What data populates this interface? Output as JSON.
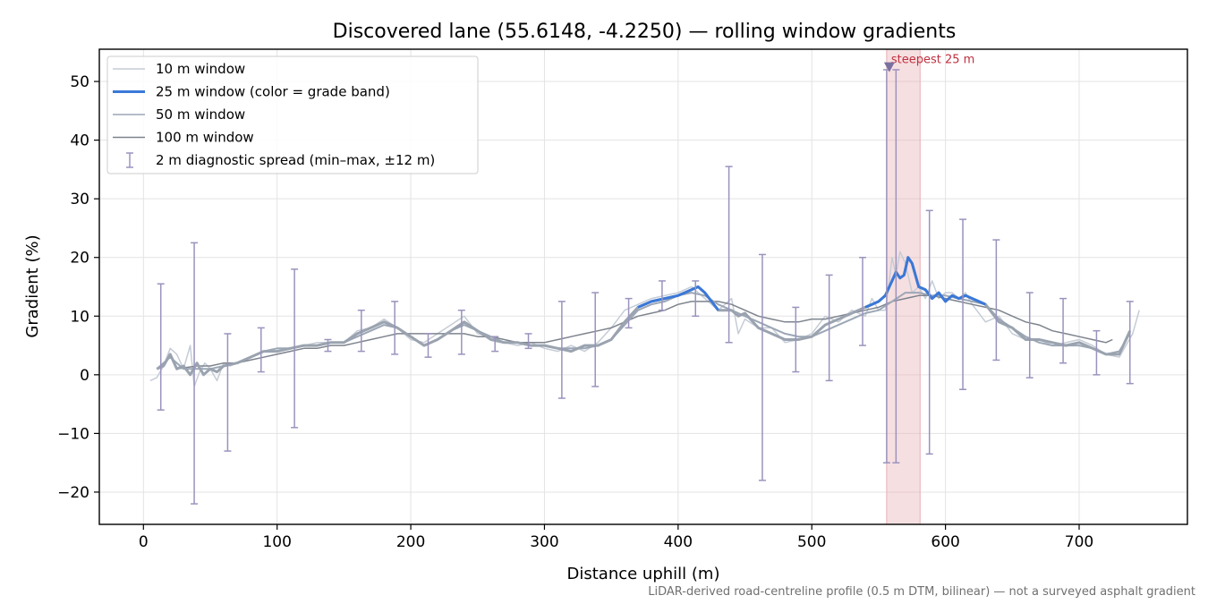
{
  "chart_data": {
    "type": "line",
    "title": "Discovered lane (55.6148, -4.2250) — rolling window gradients",
    "xlabel": "Distance uphill (m)",
    "ylabel": "Gradient (%)",
    "xlim": [
      -33,
      781
    ],
    "ylim": [
      -25.5,
      55.5
    ],
    "x_ticks": [
      0,
      100,
      200,
      300,
      400,
      500,
      600,
      700
    ],
    "y_ticks": [
      -20,
      -10,
      0,
      10,
      20,
      30,
      40,
      50
    ],
    "grid": true,
    "legend_position": "top-left",
    "footnote": "LiDAR-derived road-centreline profile (0.5 m DTM, bilinear) — not a surveyed asphalt gradient",
    "colors": {
      "w10": "#c5ccd6",
      "w25": "#3a78d8",
      "w25_base": "#9aa3af",
      "w50": "#9ca7b6",
      "w100": "#7d838d",
      "spread": "#9a93bd",
      "band": "#e8aeb5",
      "annotation": "#c0303f",
      "marker": "#7a70a0"
    },
    "legend": [
      {
        "label": "10 m window",
        "style": "line",
        "color": "#c5ccd6",
        "width": 1.5
      },
      {
        "label": "25 m window (color = grade band)",
        "style": "line",
        "color": "#3a78d8",
        "width": 3
      },
      {
        "label": "50 m window",
        "style": "line",
        "color": "#9ca7b6",
        "width": 1.5
      },
      {
        "label": "100 m window",
        "style": "line",
        "color": "#7d838d",
        "width": 1.5
      },
      {
        "label": "2 m diagnostic spread (min–max, ±12 m)",
        "style": "errorbar",
        "color": "#9a93bd"
      }
    ],
    "series": [
      {
        "name": "10 m window",
        "x": [
          5,
          10,
          15,
          20,
          25,
          30,
          35,
          38,
          42,
          46,
          50,
          55,
          60,
          65,
          70,
          80,
          90,
          100,
          110,
          120,
          130,
          140,
          150,
          160,
          170,
          180,
          190,
          200,
          210,
          220,
          230,
          240,
          250,
          260,
          270,
          280,
          290,
          300,
          310,
          320,
          330,
          340,
          350,
          360,
          370,
          380,
          390,
          400,
          410,
          420,
          430,
          440,
          445,
          450,
          460,
          470,
          480,
          490,
          500,
          510,
          520,
          530,
          540,
          545,
          550,
          555,
          558,
          560,
          563,
          566,
          570,
          575,
          580,
          585,
          590,
          595,
          600,
          605,
          610,
          615,
          620,
          630,
          640,
          650,
          660,
          670,
          680,
          690,
          700,
          710,
          720,
          730,
          740,
          745
        ],
        "y": [
          -1,
          -0.5,
          1.5,
          4.5,
          3.5,
          1,
          5,
          -2,
          0.5,
          2,
          1,
          -1,
          2,
          1.5,
          2,
          3,
          4,
          4,
          4.5,
          5,
          5.5,
          5.5,
          5.5,
          7.5,
          8,
          9.5,
          8,
          6,
          5.5,
          7,
          8.5,
          10,
          7,
          6.5,
          5.5,
          5,
          5.5,
          4.5,
          4,
          5,
          4,
          5.5,
          8,
          11,
          12,
          13,
          13.5,
          14,
          15,
          13,
          11,
          13,
          7,
          9.5,
          8,
          8,
          5.5,
          6,
          7,
          10,
          9,
          11,
          10,
          13,
          11,
          11,
          16,
          20,
          17,
          21,
          19,
          14,
          15,
          13,
          16,
          13,
          14,
          14,
          13,
          14,
          12,
          9,
          10,
          7,
          6,
          6,
          5,
          5.5,
          6,
          5,
          3.5,
          3,
          7,
          11
        ]
      },
      {
        "name": "25 m window",
        "x": [
          10,
          15,
          20,
          25,
          30,
          35,
          40,
          45,
          50,
          55,
          60,
          70,
          80,
          90,
          100,
          110,
          120,
          130,
          140,
          150,
          160,
          170,
          180,
          190,
          200,
          210,
          220,
          230,
          240,
          250,
          260,
          270,
          280,
          290,
          300,
          310,
          320,
          330,
          340,
          350,
          360,
          370,
          380,
          390,
          400,
          410,
          415,
          420,
          425,
          430,
          435,
          440,
          445,
          450,
          460,
          470,
          480,
          490,
          500,
          510,
          520,
          530,
          540,
          545,
          550,
          555,
          560,
          563,
          566,
          569,
          572,
          575,
          580,
          585,
          590,
          595,
          600,
          605,
          610,
          615,
          620,
          625,
          630,
          640,
          650,
          660,
          670,
          680,
          690,
          700,
          710,
          720,
          730,
          738
        ],
        "y": [
          1,
          1.5,
          3.5,
          1,
          1.5,
          0,
          2,
          0,
          1,
          0.5,
          1.5,
          2,
          3,
          4,
          4,
          4.5,
          5,
          5,
          5.5,
          5.5,
          7,
          8,
          9,
          8,
          6.5,
          5,
          6,
          7.5,
          9,
          7.5,
          6,
          5.5,
          5.5,
          5,
          5,
          4.5,
          4,
          5,
          5,
          6,
          9,
          11.5,
          12.5,
          13,
          13.5,
          14.5,
          15,
          14,
          12.5,
          11,
          11,
          11,
          10,
          10.5,
          8,
          7,
          6,
          6,
          6.5,
          8.5,
          9.5,
          10.5,
          11.5,
          12,
          12.5,
          13.5,
          16,
          17.5,
          16.5,
          17,
          20,
          19,
          15,
          14.5,
          13,
          14,
          12.5,
          13.5,
          13,
          13.5,
          13,
          12.5,
          12,
          9,
          8,
          6,
          6,
          5.5,
          5,
          5.5,
          4.5,
          3.5,
          3.5,
          7.5
        ],
        "steep_ranges": [
          [
            363,
            432
          ],
          [
            540,
            632
          ]
        ]
      },
      {
        "name": "50 m window",
        "x": [
          10,
          20,
          30,
          40,
          50,
          60,
          70,
          80,
          90,
          100,
          110,
          120,
          130,
          140,
          150,
          160,
          170,
          180,
          190,
          200,
          210,
          220,
          230,
          240,
          250,
          260,
          270,
          280,
          290,
          300,
          310,
          320,
          330,
          340,
          350,
          360,
          370,
          380,
          390,
          400,
          410,
          420,
          430,
          440,
          450,
          460,
          470,
          480,
          490,
          500,
          510,
          520,
          530,
          540,
          550,
          560,
          570,
          580,
          590,
          600,
          610,
          620,
          630,
          640,
          650,
          660,
          670,
          680,
          690,
          700,
          710,
          720,
          730,
          738
        ],
        "y": [
          1,
          3,
          1,
          1,
          1,
          1.5,
          2,
          3,
          4,
          4.5,
          4.5,
          5,
          5,
          5.5,
          5.5,
          6.5,
          7.5,
          8.5,
          8,
          6.5,
          5,
          6,
          7.5,
          8.5,
          7.5,
          6.5,
          5.5,
          5.5,
          5,
          5,
          4.5,
          4.5,
          4.5,
          5,
          6,
          8.5,
          11,
          12,
          12.5,
          13.5,
          14,
          13.5,
          12,
          11,
          10,
          9,
          8,
          7,
          6.5,
          6.5,
          7.5,
          8.5,
          9.5,
          10.5,
          11,
          12.5,
          14,
          14,
          13.5,
          13.5,
          13,
          12.5,
          12,
          9.5,
          8,
          6.5,
          5.5,
          5,
          5,
          5,
          4.5,
          3.5,
          4,
          7
        ]
      },
      {
        "name": "100 m window",
        "x": [
          25,
          40,
          50,
          60,
          70,
          80,
          90,
          100,
          110,
          120,
          130,
          140,
          150,
          160,
          170,
          180,
          190,
          200,
          210,
          220,
          230,
          240,
          250,
          260,
          270,
          280,
          290,
          300,
          310,
          320,
          330,
          340,
          350,
          360,
          370,
          380,
          390,
          400,
          410,
          420,
          430,
          440,
          450,
          460,
          470,
          480,
          490,
          500,
          510,
          520,
          530,
          540,
          550,
          560,
          570,
          580,
          590,
          600,
          610,
          620,
          630,
          640,
          650,
          660,
          670,
          680,
          690,
          700,
          710,
          720,
          725
        ],
        "y": [
          1,
          1.5,
          1.5,
          2,
          2,
          2.5,
          3,
          3.5,
          4,
          4.5,
          4.5,
          5,
          5,
          5.5,
          6,
          6.5,
          7,
          7,
          7,
          7,
          7,
          7,
          6.5,
          6.5,
          6,
          5.5,
          5.5,
          5.5,
          6,
          6.5,
          7,
          7.5,
          8,
          9,
          10,
          10.5,
          11,
          12,
          12.5,
          12.5,
          12.5,
          12,
          11,
          10,
          9.5,
          9,
          9,
          9.5,
          9.5,
          10,
          10.5,
          11,
          11.5,
          12.5,
          13,
          13.5,
          13.5,
          13,
          12.5,
          12,
          11.5,
          11,
          10,
          9,
          8.5,
          7.5,
          7,
          6.5,
          6,
          5.5,
          6
        ]
      }
    ],
    "spread": [
      {
        "x": 13,
        "min": -6,
        "max": 15.5
      },
      {
        "x": 38,
        "min": -22,
        "max": 22.5
      },
      {
        "x": 63,
        "min": -13,
        "max": 7
      },
      {
        "x": 88,
        "min": 0.5,
        "max": 8
      },
      {
        "x": 113,
        "min": -9,
        "max": 18
      },
      {
        "x": 138,
        "min": 4,
        "max": 6
      },
      {
        "x": 163,
        "min": 4,
        "max": 11
      },
      {
        "x": 188,
        "min": 3.5,
        "max": 12.5
      },
      {
        "x": 213,
        "min": 3,
        "max": 7
      },
      {
        "x": 238,
        "min": 3.5,
        "max": 11
      },
      {
        "x": 263,
        "min": 4,
        "max": 6.5
      },
      {
        "x": 288,
        "min": 4.5,
        "max": 7
      },
      {
        "x": 313,
        "min": -4,
        "max": 12.5
      },
      {
        "x": 338,
        "min": -2,
        "max": 14
      },
      {
        "x": 363,
        "min": 8,
        "max": 13
      },
      {
        "x": 388,
        "min": 11,
        "max": 16
      },
      {
        "x": 413,
        "min": 10,
        "max": 16
      },
      {
        "x": 438,
        "min": 5.5,
        "max": 35.5
      },
      {
        "x": 463,
        "min": -18,
        "max": 20.5
      },
      {
        "x": 488,
        "min": 0.5,
        "max": 11.5
      },
      {
        "x": 513,
        "min": -1,
        "max": 17
      },
      {
        "x": 538,
        "min": 5,
        "max": 20
      },
      {
        "x": 556,
        "min": -15,
        "max": 52
      },
      {
        "x": 563,
        "min": -15,
        "max": 52
      },
      {
        "x": 588,
        "min": -13.5,
        "max": 28
      },
      {
        "x": 613,
        "min": -2.5,
        "max": 26.5
      },
      {
        "x": 638,
        "min": 2.5,
        "max": 23
      },
      {
        "x": 663,
        "min": -0.5,
        "max": 14
      },
      {
        "x": 688,
        "min": 2,
        "max": 13
      },
      {
        "x": 713,
        "min": 0,
        "max": 7.5
      },
      {
        "x": 738,
        "min": -1.5,
        "max": 12.5
      }
    ],
    "highlight_band": {
      "x0": 556,
      "x1": 581
    },
    "annotation": {
      "text": "steepest 25 m",
      "x": 558,
      "y": 52.5
    }
  }
}
